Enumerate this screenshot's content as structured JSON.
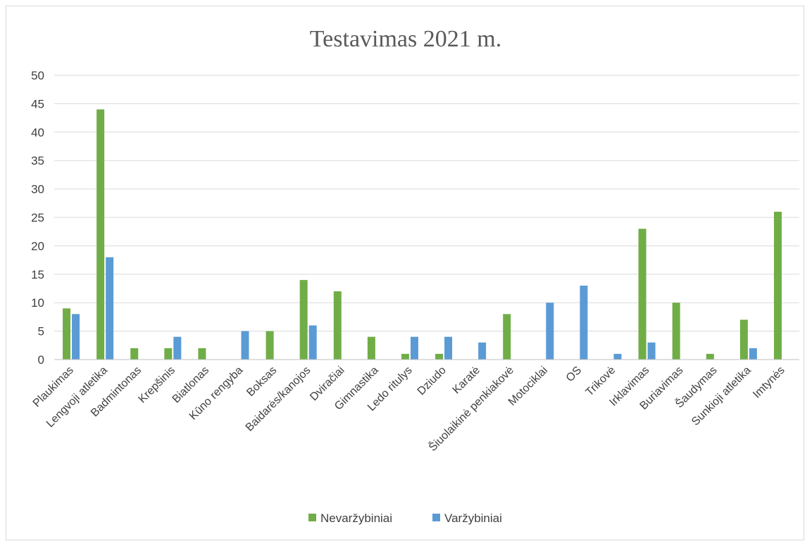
{
  "chart_data": {
    "type": "bar",
    "title": "Testavimas 2021 m.",
    "xlabel": "",
    "ylabel": "",
    "ylim": [
      0,
      50
    ],
    "yticks": [
      0,
      5,
      10,
      15,
      20,
      25,
      30,
      35,
      40,
      45,
      50
    ],
    "grid": true,
    "legend_position": "bottom",
    "categories": [
      "Plaukimas",
      "Lengvoji atletika",
      "Badmintonas",
      "Krepšinis",
      "Biatlonas",
      "Kūno rengyba",
      "Boksas",
      "Baidarės/kanojos",
      "Dviračiai",
      "Gimnastika",
      "Ledo ritulys",
      "Dziudo",
      "Karatė",
      "Šiuolaikinė penkiakovė",
      "Motociklai",
      "OS",
      "Trikovė",
      "Irklavimas",
      "Buriavimas",
      "Šaudymas",
      "Sunkioji atletika",
      "Imtynės"
    ],
    "series": [
      {
        "name": "Nevaržybiniai",
        "color": "#70ad47",
        "values": [
          9,
          44,
          2,
          2,
          2,
          0,
          5,
          14,
          12,
          4,
          1,
          1,
          0,
          8,
          0,
          0,
          0,
          23,
          10,
          1,
          7,
          26
        ]
      },
      {
        "name": "Varžybiniai",
        "color": "#5b9bd5",
        "values": [
          8,
          18,
          0,
          4,
          0,
          5,
          0,
          6,
          0,
          0,
          4,
          4,
          3,
          0,
          10,
          13,
          1,
          3,
          0,
          0,
          2,
          0
        ]
      }
    ]
  }
}
